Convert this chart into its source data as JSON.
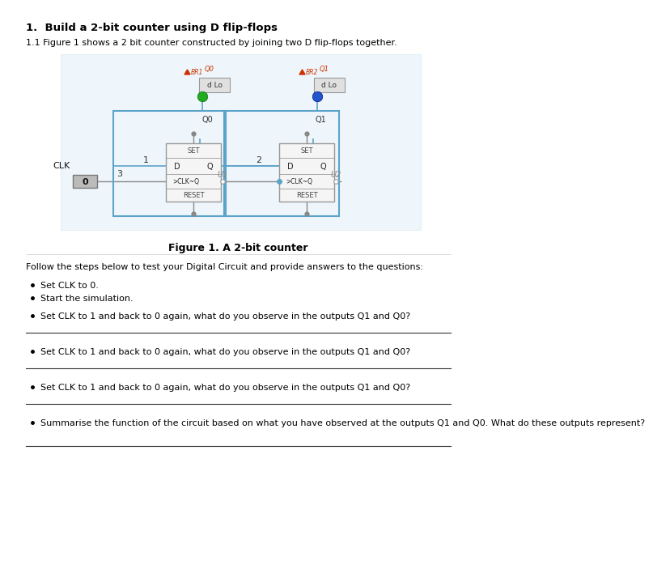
{
  "title": "1.  Build a 2-bit counter using D flip-flops",
  "subtitle": "1.1 Figure 1 shows a 2 bit counter constructed by joining two D flip-flops together.",
  "figure_caption": "Figure 1. A 2-bit counter",
  "follow_text": "Follow the steps below to test your Digital Circuit and provide answers to the questions:",
  "bullets_intro": [
    "Set CLK to 0.",
    "Start the simulation."
  ],
  "bullets_questions": [
    "Set CLK to 1 and back to 0 again, what do you observe in the outputs Q1 and Q0?",
    "Set CLK to 1 and back to 0 again, what do you observe in the outputs Q1 and Q0?",
    "Set CLK to 1 and back to 0 again, what do you observe in the outputs Q1 and Q0?",
    "Summarise the function of the circuit based on what you have observed at the outputs Q1 and Q0. What do these outputs represent?"
  ],
  "bg_color": "#ffffff",
  "text_color": "#000000",
  "grid_color": "#e0eef5",
  "circuit_bg": "#eef6fb",
  "ff_box_color": "#f5f5f5",
  "ff_border_color": "#999999",
  "wire_color": "#5ba3c9",
  "wire_loop_color": "#7ab8d4",
  "clk_box_color": "#bbbbbb",
  "green_dot": "#22aa22",
  "blue_dot": "#2255cc",
  "probe_box_color": "#e0e0e0",
  "probe_border_color": "#999999",
  "br_color": "#cc3300",
  "grey_wire": "#888888",
  "answer_line_color": "#333333"
}
